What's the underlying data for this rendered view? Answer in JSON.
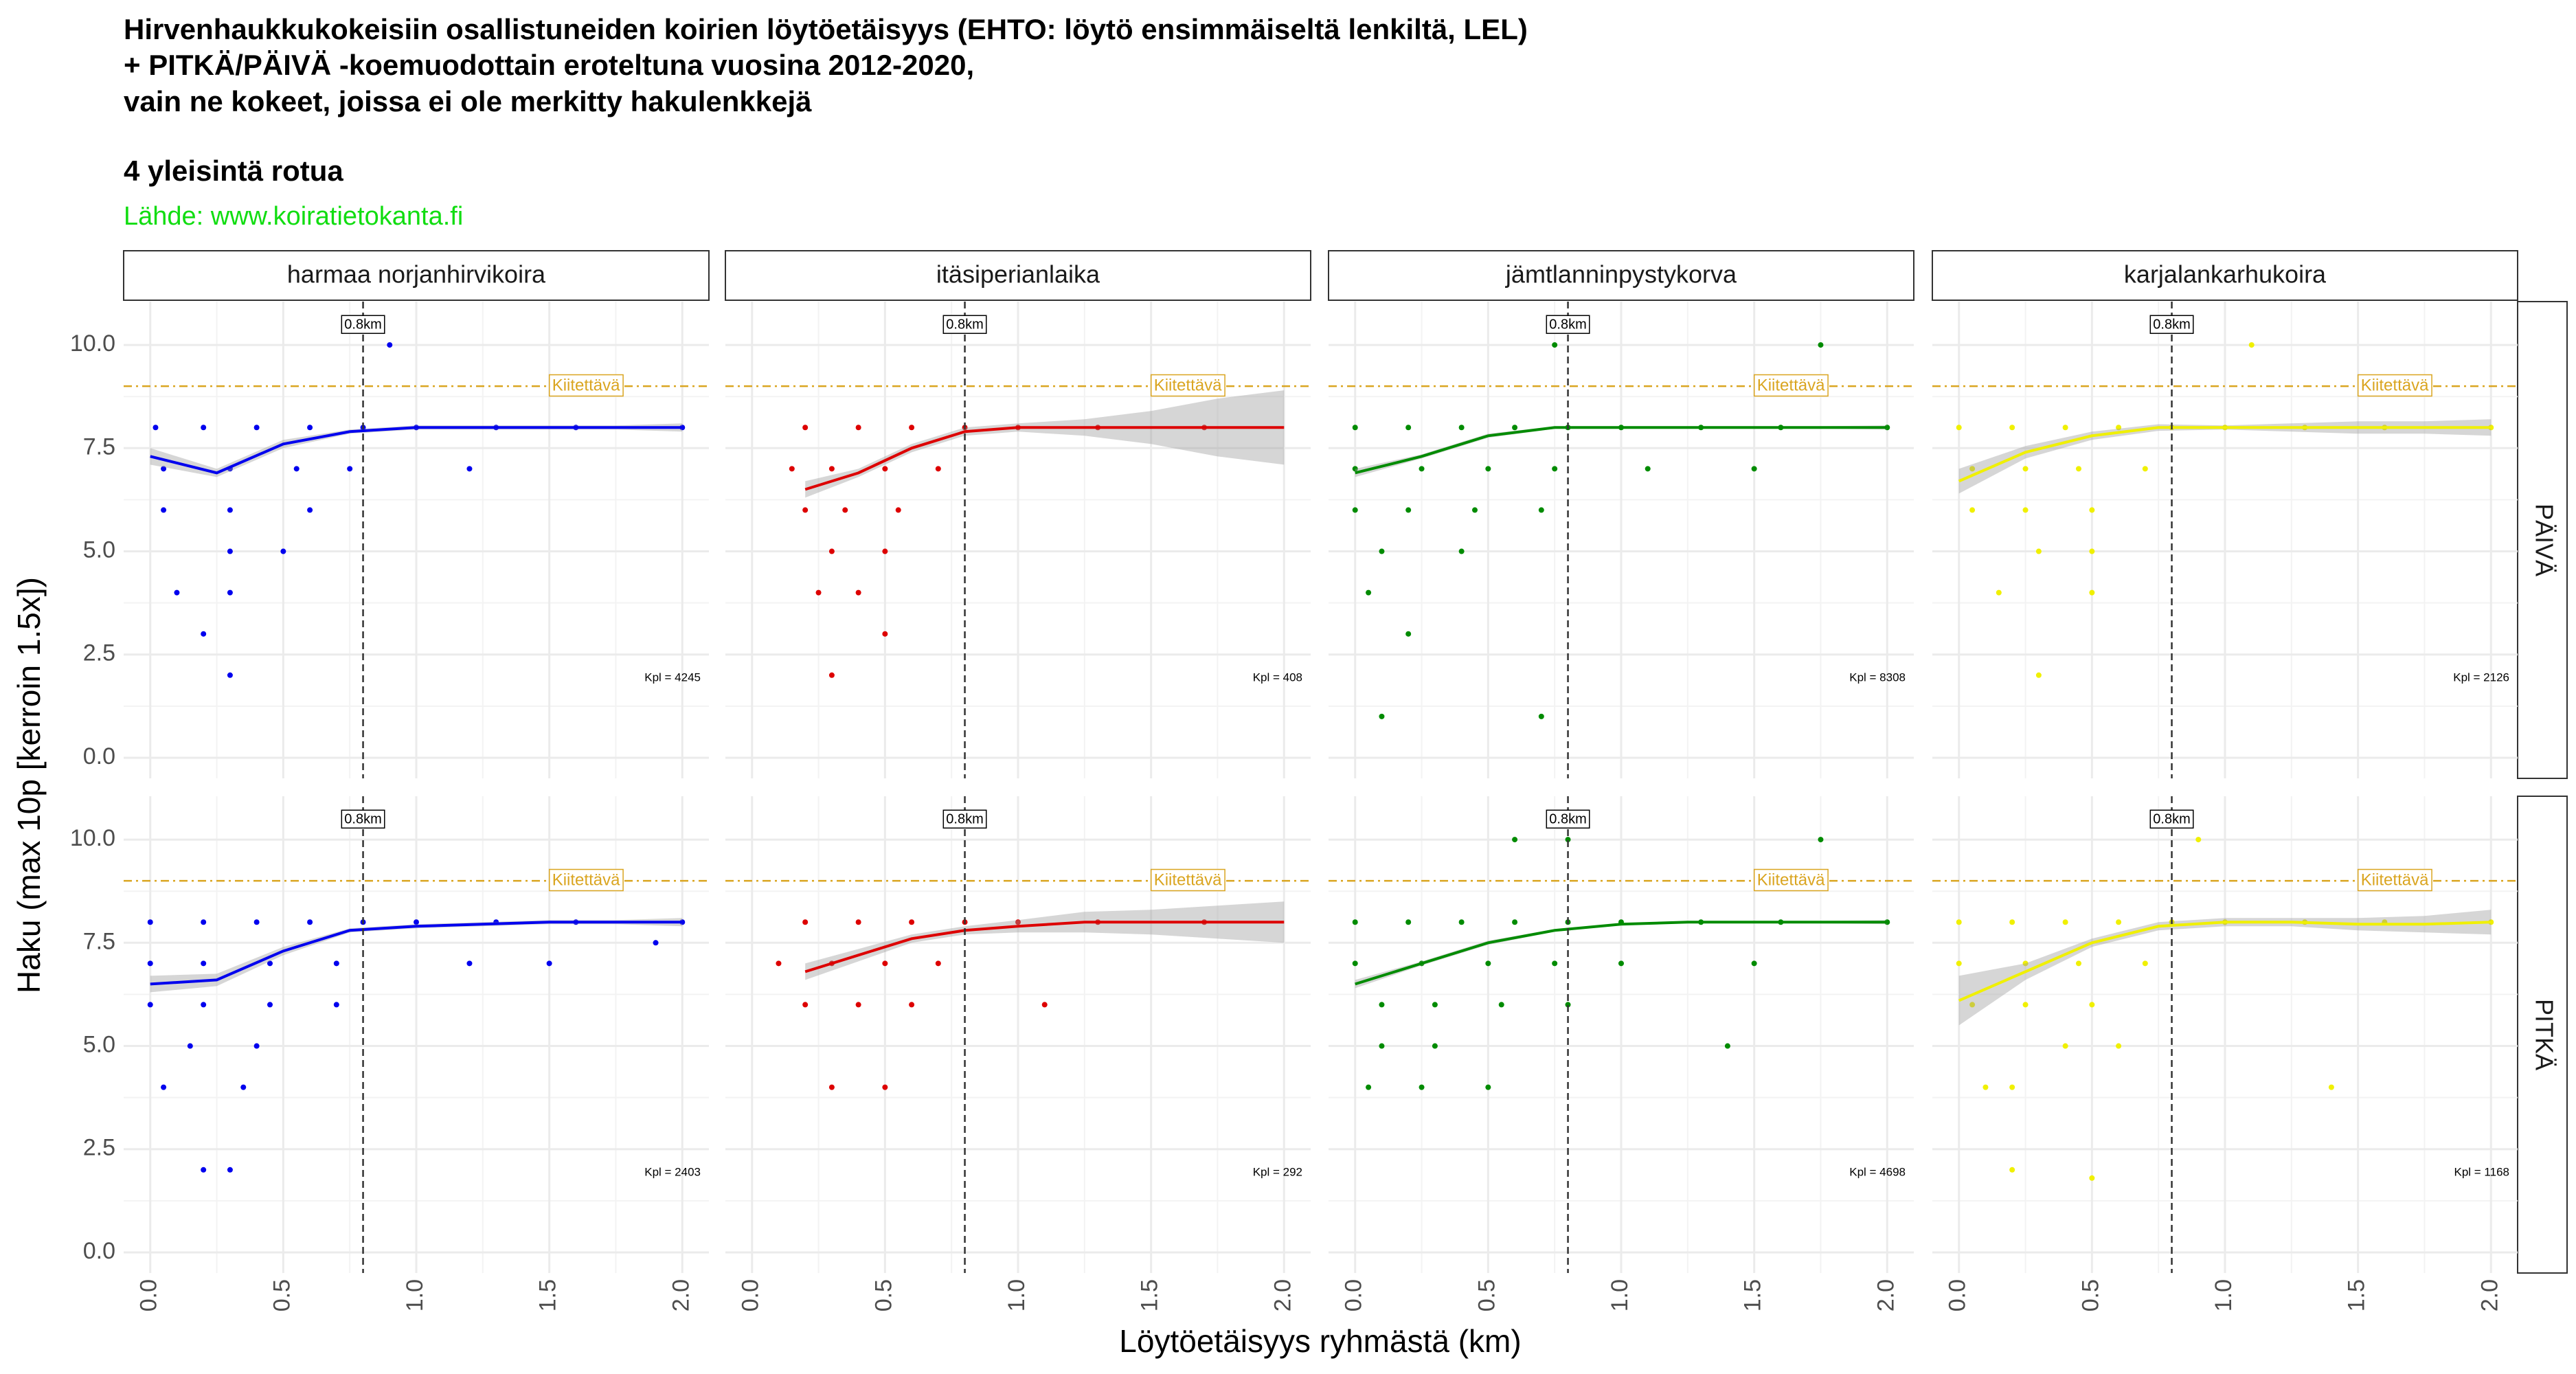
{
  "title": [
    "Hirvenhaukkukokeisiin osallistuneiden koirien löytöetäisyys (EHTO: löytö ensimmäiseltä lenkiltä, LEL)",
    "+ PITKÄ/PÄIVÄ -koemuodottain eroteltuna vuosina 2012-2020,",
    "vain ne kokeet, joissa ei ole merkitty hakulenkkejä"
  ],
  "subtitle": "4 yleisintä rotua",
  "caption": "Lähde: www.koiratietokanta.fi",
  "x_label": "Löytöetäisyys ryhmästä (km)",
  "y_label": "Haku (max 10p [kerroin 1.5x])",
  "facet_columns": [
    "harmaa norjanhirvikoira",
    "itäsiperianlaika",
    "jämtlanninpystykorva",
    "karjalankarhukoira"
  ],
  "facet_rows": [
    "PÄIVÄ",
    "PITKÄ"
  ],
  "chart_data": [
    {
      "type": "scatter",
      "color": "#0000ee",
      "grid": true,
      "x": [
        0.02,
        0.2,
        0.4,
        0.6,
        0.8,
        1.0,
        1.3,
        1.6,
        2.0,
        0.05,
        0.3,
        0.55,
        0.75,
        1.2,
        0.05,
        0.3,
        0.6,
        0.3,
        0.5,
        0.1,
        0.3,
        0.2,
        0.3,
        0.9
      ],
      "values": [
        8,
        8,
        8,
        8,
        8,
        8,
        8,
        8,
        8,
        7,
        7,
        7,
        7,
        7,
        6,
        6,
        6,
        5,
        5,
        4,
        4,
        3,
        2,
        10
      ],
      "smooth": {
        "x": [
          0,
          0.25,
          0.5,
          0.75,
          1,
          1.25,
          1.5,
          1.75,
          2
        ],
        "y": [
          7.3,
          6.9,
          7.6,
          7.9,
          8.0,
          8.0,
          8.0,
          8.0,
          8.0
        ],
        "lower": [
          7.1,
          6.8,
          7.5,
          7.85,
          7.95,
          7.95,
          7.95,
          7.95,
          7.9
        ],
        "upper": [
          7.5,
          7.0,
          7.7,
          7.95,
          8.05,
          8.05,
          8.05,
          8.05,
          8.1
        ]
      },
      "xlim": [
        -0.1,
        2.1
      ],
      "ylim": [
        -0.5,
        11.05
      ],
      "xticks": [
        {
          "value": 0,
          "label": "0.0"
        },
        0.5,
        {
          "value": 1,
          "label": "1.0"
        },
        1.5,
        {
          "value": 2,
          "label": "2.0"
        }
      ],
      "yticks": [
        {
          "value": 0,
          "label": "0.0"
        },
        2.5,
        {
          "value": 5,
          "label": "5.0"
        },
        7.5,
        {
          "value": 10,
          "label": "10.0"
        }
      ],
      "vline": {
        "value": 0.8,
        "label": "0.8km"
      },
      "hline": {
        "value": 9,
        "label": "Kiitettävä"
      },
      "count_label": "Kpl = 4245"
    },
    {
      "type": "scatter",
      "color": "#dd0000",
      "grid": true,
      "x": [
        0.2,
        0.4,
        0.6,
        0.8,
        1.0,
        1.3,
        1.7,
        0.15,
        0.3,
        0.5,
        0.7,
        0.2,
        0.35,
        0.55,
        0.3,
        0.5,
        0.25,
        0.4,
        0.5,
        0.3
      ],
      "values": [
        8,
        8,
        8,
        8,
        8,
        8,
        8,
        7,
        7,
        7,
        7,
        6,
        6,
        6,
        5,
        5,
        4,
        4,
        3,
        2
      ],
      "smooth": {
        "x": [
          0.2,
          0.4,
          0.6,
          0.8,
          1,
          1.25,
          1.5,
          1.75,
          2
        ],
        "y": [
          6.5,
          6.9,
          7.5,
          7.9,
          8.0,
          8.0,
          8.0,
          8.0,
          8.0
        ],
        "lower": [
          6.3,
          6.8,
          7.4,
          7.8,
          7.9,
          7.8,
          7.6,
          7.3,
          7.1
        ],
        "upper": [
          6.7,
          7.0,
          7.6,
          8.0,
          8.1,
          8.2,
          8.4,
          8.7,
          8.9
        ]
      },
      "xlim": [
        -0.1,
        2.1
      ],
      "ylim": [
        -0.5,
        11.05
      ],
      "xticks": [
        {
          "value": 0,
          "label": "0.0"
        },
        0.5,
        {
          "value": 1,
          "label": "1.0"
        },
        1.5,
        {
          "value": 2,
          "label": "2.0"
        }
      ],
      "yticks": [
        {
          "value": 0,
          "label": "0.0"
        },
        2.5,
        {
          "value": 5,
          "label": "5.0"
        },
        7.5,
        {
          "value": 10,
          "label": "10.0"
        }
      ],
      "vline": {
        "value": 0.8,
        "label": "0.8km"
      },
      "hline": {
        "value": 9,
        "label": "Kiitettävä"
      },
      "count_label": "Kpl = 408"
    },
    {
      "type": "scatter",
      "color": "#008b00",
      "grid": true,
      "x": [
        0.0,
        0.2,
        0.4,
        0.6,
        0.8,
        1.0,
        1.3,
        1.6,
        2.0,
        0.0,
        0.25,
        0.5,
        0.75,
        1.1,
        1.5,
        0.0,
        0.2,
        0.45,
        0.7,
        0.1,
        0.4,
        0.05,
        0.2,
        0.1,
        0.7,
        0.75,
        1.75
      ],
      "values": [
        8,
        8,
        8,
        8,
        8,
        8,
        8,
        8,
        8,
        7,
        7,
        7,
        7,
        7,
        7,
        6,
        6,
        6,
        6,
        5,
        5,
        4,
        3,
        1,
        1,
        10,
        10
      ],
      "smooth": {
        "x": [
          0,
          0.25,
          0.5,
          0.75,
          1,
          1.25,
          1.5,
          1.75,
          2
        ],
        "y": [
          6.9,
          7.3,
          7.8,
          8.0,
          8.0,
          8.0,
          8.0,
          8.0,
          8.0
        ],
        "lower": [
          6.8,
          7.25,
          7.75,
          7.97,
          7.98,
          7.98,
          7.98,
          7.97,
          7.95
        ],
        "upper": [
          7.0,
          7.35,
          7.85,
          8.03,
          8.02,
          8.02,
          8.02,
          8.03,
          8.05
        ]
      },
      "xlim": [
        -0.1,
        2.1
      ],
      "ylim": [
        -0.5,
        11.05
      ],
      "xticks": [
        {
          "value": 0,
          "label": "0.0"
        },
        0.5,
        {
          "value": 1,
          "label": "1.0"
        },
        1.5,
        {
          "value": 2,
          "label": "2.0"
        }
      ],
      "yticks": [
        {
          "value": 0,
          "label": "0.0"
        },
        2.5,
        {
          "value": 5,
          "label": "5.0"
        },
        7.5,
        {
          "value": 10,
          "label": "10.0"
        }
      ],
      "vline": {
        "value": 0.8,
        "label": "0.8km"
      },
      "hline": {
        "value": 9,
        "label": "Kiitettävä"
      },
      "count_label": "Kpl = 8308"
    },
    {
      "type": "scatter",
      "color": "#f0f000",
      "grid": true,
      "x": [
        0.0,
        0.2,
        0.4,
        0.6,
        0.8,
        1.0,
        1.3,
        1.6,
        2.0,
        0.05,
        0.25,
        0.45,
        0.7,
        0.05,
        0.25,
        0.5,
        0.3,
        0.5,
        0.15,
        0.5,
        0.3,
        1.1
      ],
      "values": [
        8,
        8,
        8,
        8,
        8,
        8,
        8,
        8,
        8,
        7,
        7,
        7,
        7,
        6,
        6,
        6,
        5,
        5,
        4,
        4,
        2,
        10
      ],
      "smooth": {
        "x": [
          0,
          0.25,
          0.5,
          0.75,
          1,
          1.25,
          1.5,
          1.75,
          2
        ],
        "y": [
          6.7,
          7.4,
          7.8,
          8.0,
          8.0,
          8.0,
          8.0,
          8.0,
          8.0
        ],
        "lower": [
          6.4,
          7.25,
          7.7,
          7.92,
          7.95,
          7.9,
          7.85,
          7.85,
          7.8
        ],
        "upper": [
          7.0,
          7.55,
          7.9,
          8.08,
          8.05,
          8.1,
          8.15,
          8.15,
          8.2
        ]
      },
      "xlim": [
        -0.1,
        2.1
      ],
      "ylim": [
        -0.5,
        11.05
      ],
      "xticks": [
        {
          "value": 0,
          "label": "0.0"
        },
        0.5,
        {
          "value": 1,
          "label": "1.0"
        },
        1.5,
        {
          "value": 2,
          "label": "2.0"
        }
      ],
      "yticks": [
        {
          "value": 0,
          "label": "0.0"
        },
        2.5,
        {
          "value": 5,
          "label": "5.0"
        },
        7.5,
        {
          "value": 10,
          "label": "10.0"
        }
      ],
      "vline": {
        "value": 0.8,
        "label": "0.8km"
      },
      "hline": {
        "value": 9,
        "label": "Kiitettävä"
      },
      "count_label": "Kpl = 2126"
    },
    {
      "type": "scatter",
      "color": "#0000ee",
      "grid": true,
      "x": [
        0.0,
        0.2,
        0.4,
        0.6,
        0.8,
        1.0,
        1.3,
        1.6,
        2.0,
        0.0,
        0.2,
        0.45,
        0.7,
        1.2,
        1.5,
        0.0,
        0.2,
        0.45,
        0.7,
        0.15,
        0.4,
        0.05,
        0.35,
        0.2,
        0.3,
        1.9
      ],
      "values": [
        8,
        8,
        8,
        8,
        8,
        8,
        8,
        8,
        8,
        7,
        7,
        7,
        7,
        7,
        7,
        6,
        6,
        6,
        6,
        5,
        5,
        4,
        4,
        2,
        2,
        7.5
      ],
      "smooth": {
        "x": [
          0,
          0.25,
          0.5,
          0.75,
          1,
          1.25,
          1.5,
          1.75,
          2
        ],
        "y": [
          6.5,
          6.6,
          7.3,
          7.8,
          7.9,
          7.95,
          8.0,
          8.0,
          8.0
        ],
        "lower": [
          6.3,
          6.45,
          7.2,
          7.75,
          7.85,
          7.9,
          7.95,
          7.95,
          7.9
        ],
        "upper": [
          6.7,
          6.75,
          7.4,
          7.85,
          7.95,
          8.0,
          8.05,
          8.05,
          8.1
        ]
      },
      "xlim": [
        -0.1,
        2.1
      ],
      "ylim": [
        -0.5,
        11.05
      ],
      "xticks": [
        {
          "value": 0,
          "label": "0.0"
        },
        0.5,
        {
          "value": 1,
          "label": "1.0"
        },
        1.5,
        {
          "value": 2,
          "label": "2.0"
        }
      ],
      "yticks": [
        {
          "value": 0,
          "label": "0.0"
        },
        2.5,
        {
          "value": 5,
          "label": "5.0"
        },
        7.5,
        {
          "value": 10,
          "label": "10.0"
        }
      ],
      "vline": {
        "value": 0.8,
        "label": "0.8km"
      },
      "hline": {
        "value": 9,
        "label": "Kiitettävä"
      },
      "count_label": "Kpl = 2403"
    },
    {
      "type": "scatter",
      "color": "#dd0000",
      "grid": true,
      "x": [
        0.2,
        0.4,
        0.6,
        0.8,
        1.0,
        1.3,
        1.7,
        0.1,
        0.3,
        0.5,
        0.7,
        0.2,
        0.4,
        0.6,
        1.1,
        0.3,
        0.5
      ],
      "values": [
        8,
        8,
        8,
        8,
        8,
        8,
        8,
        7,
        7,
        7,
        7,
        6,
        6,
        6,
        6,
        4,
        4
      ],
      "smooth": {
        "x": [
          0.2,
          0.4,
          0.6,
          0.8,
          1,
          1.25,
          1.5,
          1.75,
          2
        ],
        "y": [
          6.8,
          7.2,
          7.6,
          7.8,
          7.9,
          8.0,
          8.0,
          8.0,
          8.0
        ],
        "lower": [
          6.6,
          7.05,
          7.5,
          7.7,
          7.75,
          7.75,
          7.7,
          7.6,
          7.5
        ],
        "upper": [
          7.0,
          7.35,
          7.7,
          7.9,
          8.05,
          8.25,
          8.3,
          8.4,
          8.5
        ]
      },
      "xlim": [
        -0.1,
        2.1
      ],
      "ylim": [
        -0.5,
        11.05
      ],
      "xticks": [
        {
          "value": 0,
          "label": "0.0"
        },
        0.5,
        {
          "value": 1,
          "label": "1.0"
        },
        1.5,
        {
          "value": 2,
          "label": "2.0"
        }
      ],
      "yticks": [
        {
          "value": 0,
          "label": "0.0"
        },
        2.5,
        {
          "value": 5,
          "label": "5.0"
        },
        7.5,
        {
          "value": 10,
          "label": "10.0"
        }
      ],
      "vline": {
        "value": 0.8,
        "label": "0.8km"
      },
      "hline": {
        "value": 9,
        "label": "Kiitettävä"
      },
      "count_label": "Kpl = 292"
    },
    {
      "type": "scatter",
      "color": "#008b00",
      "grid": true,
      "x": [
        0.0,
        0.2,
        0.4,
        0.6,
        0.8,
        1.0,
        1.3,
        1.6,
        2.0,
        0.0,
        0.25,
        0.5,
        0.75,
        1.0,
        1.5,
        0.1,
        0.3,
        0.55,
        0.8,
        1.4,
        0.1,
        0.3,
        0.05,
        0.25,
        0.5,
        0.6,
        0.8,
        1.75
      ],
      "values": [
        8,
        8,
        8,
        8,
        8,
        8,
        8,
        8,
        8,
        7,
        7,
        7,
        7,
        7,
        7,
        6,
        6,
        6,
        6,
        5,
        5,
        5,
        4,
        4,
        4,
        10,
        10,
        10
      ],
      "smooth": {
        "x": [
          0,
          0.25,
          0.5,
          0.75,
          1,
          1.25,
          1.5,
          1.75,
          2
        ],
        "y": [
          6.5,
          7.0,
          7.5,
          7.8,
          7.95,
          8.0,
          8.0,
          8.0,
          8.0
        ],
        "lower": [
          6.4,
          6.95,
          7.45,
          7.77,
          7.93,
          7.97,
          7.98,
          7.97,
          7.95
        ],
        "upper": [
          6.6,
          7.05,
          7.55,
          7.83,
          7.97,
          8.03,
          8.02,
          8.03,
          8.05
        ]
      },
      "xlim": [
        -0.1,
        2.1
      ],
      "ylim": [
        -0.5,
        11.05
      ],
      "xticks": [
        {
          "value": 0,
          "label": "0.0"
        },
        0.5,
        {
          "value": 1,
          "label": "1.0"
        },
        1.5,
        {
          "value": 2,
          "label": "2.0"
        }
      ],
      "yticks": [
        {
          "value": 0,
          "label": "0.0"
        },
        2.5,
        {
          "value": 5,
          "label": "5.0"
        },
        7.5,
        {
          "value": 10,
          "label": "10.0"
        }
      ],
      "vline": {
        "value": 0.8,
        "label": "0.8km"
      },
      "hline": {
        "value": 9,
        "label": "Kiitettävä"
      },
      "count_label": "Kpl = 4698"
    },
    {
      "type": "scatter",
      "color": "#f0f000",
      "grid": true,
      "x": [
        0.0,
        0.2,
        0.4,
        0.6,
        0.8,
        1.0,
        1.3,
        1.6,
        2.0,
        0.0,
        0.25,
        0.45,
        0.7,
        0.05,
        0.25,
        0.5,
        0.4,
        0.6,
        0.1,
        0.2,
        0.2,
        0.5,
        1.4,
        0.9
      ],
      "values": [
        8,
        8,
        8,
        8,
        8,
        8,
        8,
        8,
        8,
        7,
        7,
        7,
        7,
        6,
        6,
        6,
        5,
        5,
        4,
        4,
        2,
        1.8,
        4,
        10
      ],
      "smooth": {
        "x": [
          0,
          0.25,
          0.5,
          0.75,
          1,
          1.25,
          1.5,
          1.75,
          2
        ],
        "y": [
          6.1,
          6.8,
          7.5,
          7.9,
          8.0,
          8.0,
          7.95,
          7.95,
          8.0
        ],
        "lower": [
          5.5,
          6.6,
          7.4,
          7.8,
          7.9,
          7.9,
          7.8,
          7.75,
          7.7
        ],
        "upper": [
          6.7,
          7.0,
          7.6,
          8.0,
          8.1,
          8.1,
          8.1,
          8.15,
          8.3
        ]
      },
      "xlim": [
        -0.1,
        2.1
      ],
      "ylim": [
        -0.5,
        11.05
      ],
      "xticks": [
        {
          "value": 0,
          "label": "0.0"
        },
        0.5,
        {
          "value": 1,
          "label": "1.0"
        },
        1.5,
        {
          "value": 2,
          "label": "2.0"
        }
      ],
      "yticks": [
        {
          "value": 0,
          "label": "0.0"
        },
        2.5,
        {
          "value": 5,
          "label": "5.0"
        },
        7.5,
        {
          "value": 10,
          "label": "10.0"
        }
      ],
      "vline": {
        "value": 0.8,
        "label": "0.8km"
      },
      "hline": {
        "value": 9,
        "label": "Kiitettävä"
      },
      "count_label": "Kpl = 1168"
    }
  ]
}
